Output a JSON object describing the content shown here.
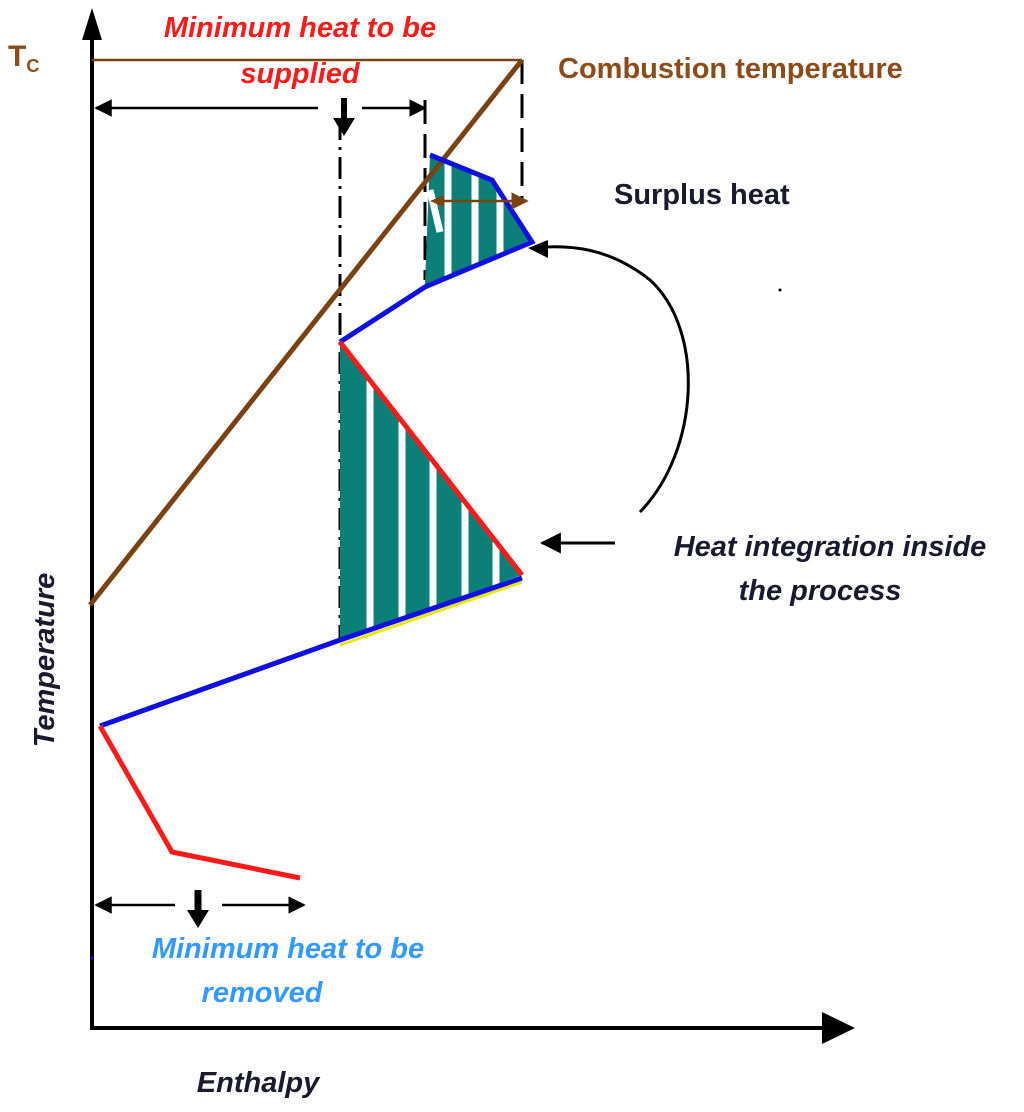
{
  "labels": {
    "tc_main": "T",
    "tc_sub": "C",
    "min_supplied_line1": "Minimum heat to be",
    "min_supplied_line2": "supplied",
    "combustion": "Combustion temperature",
    "surplus": "Surplus heat",
    "integration_line1": "Heat integration inside",
    "integration_line2": "the process",
    "min_removed_line1": "Minimum heat to be",
    "min_removed_line2": "removed",
    "y_axis": "Temperature",
    "x_axis": "Enthalpy"
  },
  "colors": {
    "axis": "#000000",
    "combustion": "#7a4210",
    "hot_curve": "#ff1a1a",
    "cold_curve": "#1010e0",
    "fill": "#0b7f78",
    "supplied_text": "#ff1a1a",
    "removed_text": "#3399ff",
    "combustion_text": "#8b4c1a",
    "dark_text": "#1a1a2e",
    "highlight": "#e8e800"
  }
}
